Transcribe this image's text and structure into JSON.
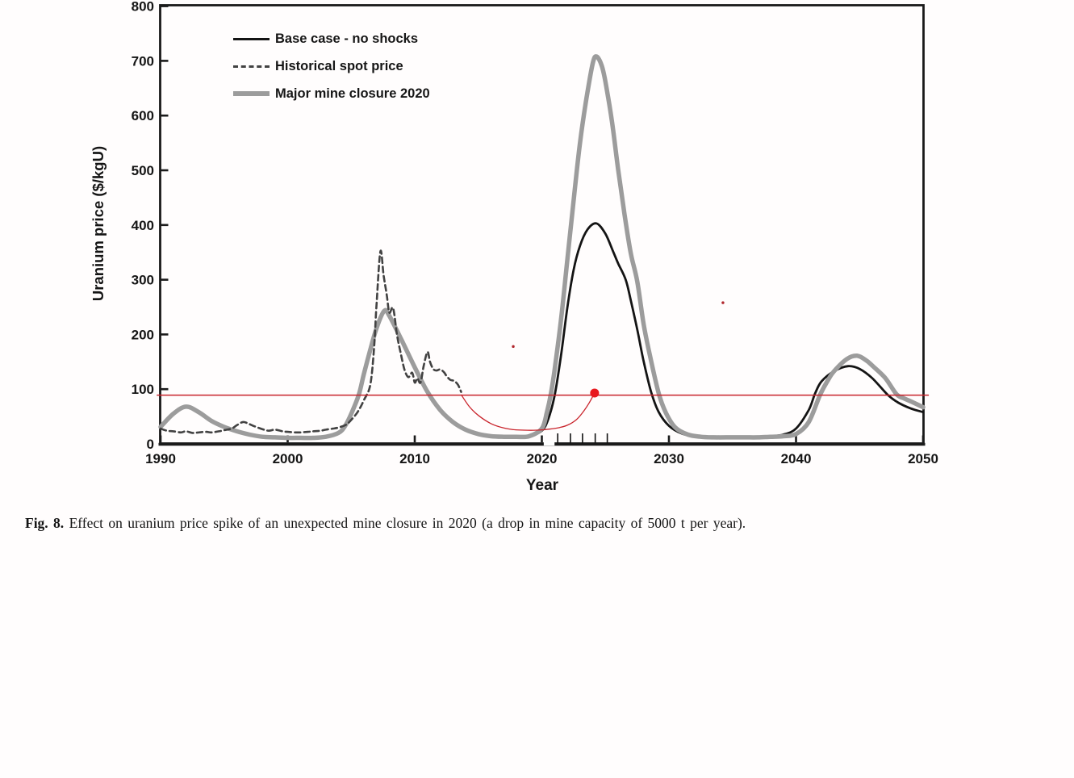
{
  "figure": {
    "caption_label": "Fig. 8.",
    "caption_text": "Effect on uranium price spike of an unexpected mine closure in 2020 (a drop in mine capacity of 5000 t per year)."
  },
  "chart_data": {
    "type": "line",
    "title": "",
    "xlabel": "Year",
    "ylabel": "Uranium price ($/kgU)",
    "xlim": [
      1990,
      2050
    ],
    "ylim": [
      0,
      800
    ],
    "x_ticks": [
      1990,
      2000,
      2010,
      2020,
      2030,
      2040,
      2050
    ],
    "y_ticks": [
      0,
      100,
      200,
      300,
      400,
      500,
      600,
      700,
      800
    ],
    "grid": false,
    "legend_position": "top-left-inside",
    "series": [
      {
        "name": "Base case - no shocks",
        "style": "solid",
        "color": "#141414",
        "width": 2.8,
        "points": [
          [
            1990,
            31
          ],
          [
            1991,
            55
          ],
          [
            1992,
            68
          ],
          [
            1993,
            58
          ],
          [
            1994,
            42
          ],
          [
            1995,
            31
          ],
          [
            1996,
            23
          ],
          [
            1997,
            17
          ],
          [
            1998,
            13
          ],
          [
            1999,
            12
          ],
          [
            2000,
            11
          ],
          [
            2001,
            11
          ],
          [
            2002,
            11
          ],
          [
            2003,
            13
          ],
          [
            2004,
            20
          ],
          [
            2004.5,
            32
          ],
          [
            2005,
            55
          ],
          [
            2005.6,
            90
          ],
          [
            2006,
            128
          ],
          [
            2006.5,
            172
          ],
          [
            2007,
            212
          ],
          [
            2007.6,
            243
          ],
          [
            2008,
            234
          ],
          [
            2009,
            188
          ],
          [
            2010,
            140
          ],
          [
            2011,
            95
          ],
          [
            2012,
            62
          ],
          [
            2013,
            40
          ],
          [
            2014,
            26
          ],
          [
            2015,
            18
          ],
          [
            2016,
            14
          ],
          [
            2017,
            13
          ],
          [
            2018,
            13
          ],
          [
            2019,
            14
          ],
          [
            2020,
            24
          ],
          [
            2020.5,
            45
          ],
          [
            2021,
            88
          ],
          [
            2021.5,
            160
          ],
          [
            2022,
            248
          ],
          [
            2022.5,
            318
          ],
          [
            2023,
            362
          ],
          [
            2023.6,
            392
          ],
          [
            2024.3,
            403
          ],
          [
            2025,
            384
          ],
          [
            2025.6,
            352
          ],
          [
            2026,
            330
          ],
          [
            2026.6,
            300
          ],
          [
            2027,
            262
          ],
          [
            2027.5,
            210
          ],
          [
            2028,
            152
          ],
          [
            2028.6,
            95
          ],
          [
            2029.2,
            58
          ],
          [
            2030,
            33
          ],
          [
            2031,
            19
          ],
          [
            2032,
            14
          ],
          [
            2033,
            13
          ],
          [
            2034,
            13
          ],
          [
            2035,
            13
          ],
          [
            2036,
            13
          ],
          [
            2037,
            13
          ],
          [
            2038,
            14
          ],
          [
            2039,
            17
          ],
          [
            2040,
            28
          ],
          [
            2041,
            62
          ],
          [
            2041.5,
            92
          ],
          [
            2042,
            114
          ],
          [
            2043,
            133
          ],
          [
            2044.1,
            142
          ],
          [
            2045,
            137
          ],
          [
            2046,
            120
          ],
          [
            2047.2,
            90
          ],
          [
            2048,
            76
          ],
          [
            2049,
            65
          ],
          [
            2050,
            58
          ]
        ]
      },
      {
        "name": "Historical spot price",
        "style": "dashed",
        "color": "#424242",
        "width": 2.6,
        "points": [
          [
            1990,
            28
          ],
          [
            1990.5,
            24
          ],
          [
            1991,
            23
          ],
          [
            1991.6,
            21
          ],
          [
            1992,
            23
          ],
          [
            1992.5,
            20
          ],
          [
            1993,
            21
          ],
          [
            1993.6,
            22
          ],
          [
            1994,
            21
          ],
          [
            1994.6,
            23
          ],
          [
            1995,
            25
          ],
          [
            1995.6,
            28
          ],
          [
            1996,
            34
          ],
          [
            1996.5,
            40
          ],
          [
            1997,
            36
          ],
          [
            1997.4,
            32
          ],
          [
            1998,
            27
          ],
          [
            1998.5,
            24
          ],
          [
            1999,
            26
          ],
          [
            1999.6,
            23
          ],
          [
            2000,
            22
          ],
          [
            2000.6,
            21
          ],
          [
            2001,
            21
          ],
          [
            2001.6,
            22
          ],
          [
            2002,
            23
          ],
          [
            2002.6,
            24
          ],
          [
            2003,
            26
          ],
          [
            2003.6,
            28
          ],
          [
            2004,
            30
          ],
          [
            2004.6,
            35
          ],
          [
            2005,
            44
          ],
          [
            2005.5,
            58
          ],
          [
            2006,
            80
          ],
          [
            2006.5,
            108
          ],
          [
            2006.8,
            176
          ],
          [
            2007,
            258
          ],
          [
            2007.3,
            352
          ],
          [
            2007.55,
            308
          ],
          [
            2007.8,
            272
          ],
          [
            2008,
            240
          ],
          [
            2008.3,
            248
          ],
          [
            2008.6,
            200
          ],
          [
            2008.9,
            165
          ],
          [
            2009.2,
            135
          ],
          [
            2009.5,
            122
          ],
          [
            2009.8,
            130
          ],
          [
            2010,
            112
          ],
          [
            2010.2,
            120
          ],
          [
            2010.45,
            112
          ],
          [
            2010.7,
            142
          ],
          [
            2011,
            168
          ],
          [
            2011.2,
            150
          ],
          [
            2011.45,
            137
          ],
          [
            2011.7,
            134
          ],
          [
            2012,
            136
          ],
          [
            2012.3,
            131
          ],
          [
            2012.5,
            124
          ],
          [
            2012.8,
            117
          ],
          [
            2013.1,
            115
          ],
          [
            2013.4,
            108
          ],
          [
            2013.65,
            95
          ]
        ]
      },
      {
        "name": "Major mine closure 2020",
        "style": "solid",
        "color": "#9c9c9c",
        "width": 5.5,
        "points": [
          [
            1990,
            31
          ],
          [
            1991,
            55
          ],
          [
            1992,
            68
          ],
          [
            1993,
            58
          ],
          [
            1994,
            42
          ],
          [
            1995,
            31
          ],
          [
            1996,
            23
          ],
          [
            1997,
            17
          ],
          [
            1998,
            13
          ],
          [
            1999,
            12
          ],
          [
            2000,
            11
          ],
          [
            2001,
            11
          ],
          [
            2002,
            11
          ],
          [
            2003,
            13
          ],
          [
            2004,
            20
          ],
          [
            2004.5,
            32
          ],
          [
            2005,
            55
          ],
          [
            2005.6,
            90
          ],
          [
            2006,
            128
          ],
          [
            2006.5,
            172
          ],
          [
            2007,
            212
          ],
          [
            2007.6,
            243
          ],
          [
            2008,
            234
          ],
          [
            2009,
            188
          ],
          [
            2010,
            140
          ],
          [
            2011,
            95
          ],
          [
            2012,
            62
          ],
          [
            2013,
            40
          ],
          [
            2014,
            26
          ],
          [
            2015,
            18
          ],
          [
            2016,
            14
          ],
          [
            2017,
            13
          ],
          [
            2018,
            13
          ],
          [
            2019,
            14
          ],
          [
            2020,
            28
          ],
          [
            2020.4,
            58
          ],
          [
            2020.7,
            90
          ],
          [
            2021,
            135
          ],
          [
            2021.5,
            225
          ],
          [
            2022,
            335
          ],
          [
            2022.5,
            445
          ],
          [
            2023,
            550
          ],
          [
            2023.5,
            630
          ],
          [
            2024,
            695
          ],
          [
            2024.3,
            708
          ],
          [
            2024.7,
            692
          ],
          [
            2025,
            662
          ],
          [
            2025.5,
            592
          ],
          [
            2026,
            502
          ],
          [
            2026.5,
            420
          ],
          [
            2027,
            348
          ],
          [
            2027.5,
            298
          ],
          [
            2028,
            220
          ],
          [
            2028.5,
            162
          ],
          [
            2029.2,
            92
          ],
          [
            2029.8,
            55
          ],
          [
            2030.5,
            30
          ],
          [
            2031.5,
            17
          ],
          [
            2032.5,
            13
          ],
          [
            2033.5,
            12
          ],
          [
            2035,
            12
          ],
          [
            2036,
            12
          ],
          [
            2037,
            12
          ],
          [
            2038,
            13
          ],
          [
            2039,
            14
          ],
          [
            2040,
            18
          ],
          [
            2041,
            40
          ],
          [
            2041.9,
            90
          ],
          [
            2042.5,
            116
          ],
          [
            2043,
            133
          ],
          [
            2044,
            155
          ],
          [
            2044.8,
            161
          ],
          [
            2045.5,
            153
          ],
          [
            2046,
            143
          ],
          [
            2047,
            121
          ],
          [
            2047.9,
            91
          ],
          [
            2048.5,
            83
          ],
          [
            2049,
            78
          ],
          [
            2050,
            67
          ]
        ]
      }
    ],
    "annotations": {
      "hline": {
        "value": 89,
        "x_start": 1989.7,
        "x_end": 2050.45,
        "color": "#c9232b"
      },
      "red_curve": {
        "color": "#c9232b",
        "points": [
          [
            2013.65,
            90
          ],
          [
            2014.3,
            68
          ],
          [
            2015,
            52
          ],
          [
            2016,
            37
          ],
          [
            2017,
            29
          ],
          [
            2017.8,
            26
          ],
          [
            2018.6,
            25
          ],
          [
            2019.6,
            25
          ],
          [
            2020.6,
            27
          ],
          [
            2021.4,
            30
          ],
          [
            2022,
            34
          ],
          [
            2022.7,
            44
          ],
          [
            2023.2,
            57
          ],
          [
            2023.7,
            74
          ],
          [
            2024.15,
            93
          ]
        ]
      },
      "red_dot": {
        "x": 2024.15,
        "value": 93,
        "color": "#e8191f",
        "radius": 5.5
      },
      "red_specks": [
        [
          2017.75,
          178
        ],
        [
          2034.25,
          258
        ]
      ],
      "minor_tick_years": [
        2021.25,
        2022.25,
        2023.2,
        2024.2,
        2025.15
      ],
      "axis_gap_years": [
        2020.15,
        2021.0
      ]
    },
    "colors": {
      "axis": "#1a1a1a",
      "tick_label": "#151515"
    }
  }
}
